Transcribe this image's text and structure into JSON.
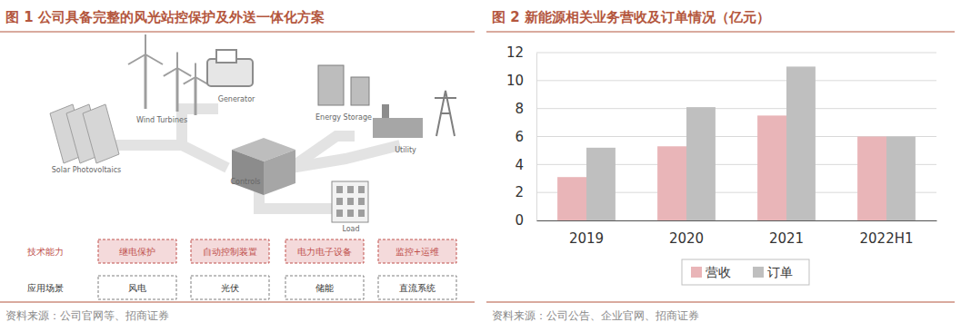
{
  "chart_data": {
    "type": "bar",
    "title": "图 2 新能源相关业务营收及订单情况（亿元）",
    "source": "资料来源：公司公告、企业官网、招商证券",
    "categories": [
      "2019",
      "2020",
      "2021",
      "2022H1"
    ],
    "series": [
      {
        "name": "营收",
        "color": "#e9b5b8",
        "values": [
          3.1,
          5.3,
          7.5,
          6.0
        ]
      },
      {
        "name": "订单",
        "color": "#bfbfbf",
        "values": [
          5.2,
          8.1,
          11.0,
          6.0
        ]
      }
    ],
    "ylim": [
      0,
      12
    ],
    "yticks": [
      0,
      2,
      4,
      6,
      8,
      10,
      12
    ],
    "grid": true,
    "legend": "bottom"
  },
  "diagram": {
    "title": "图 1 公司具备完整的风光站控保护及外送一体化方案",
    "source": "资料来源：公司官网等、招商证券",
    "labels": [
      "Solar Photovoltaics",
      "Wind Turbines",
      "Generator",
      "Energy Storage",
      "Utility",
      "Controls",
      "Load"
    ],
    "rows": [
      {
        "label": "技术能力",
        "items": [
          "继电保护",
          "自动控制装置",
          "电力电子设备",
          "监控+运维"
        ]
      },
      {
        "label": "应用场景",
        "items": [
          "风电",
          "光伏",
          "储能",
          "直流系统"
        ]
      }
    ]
  }
}
